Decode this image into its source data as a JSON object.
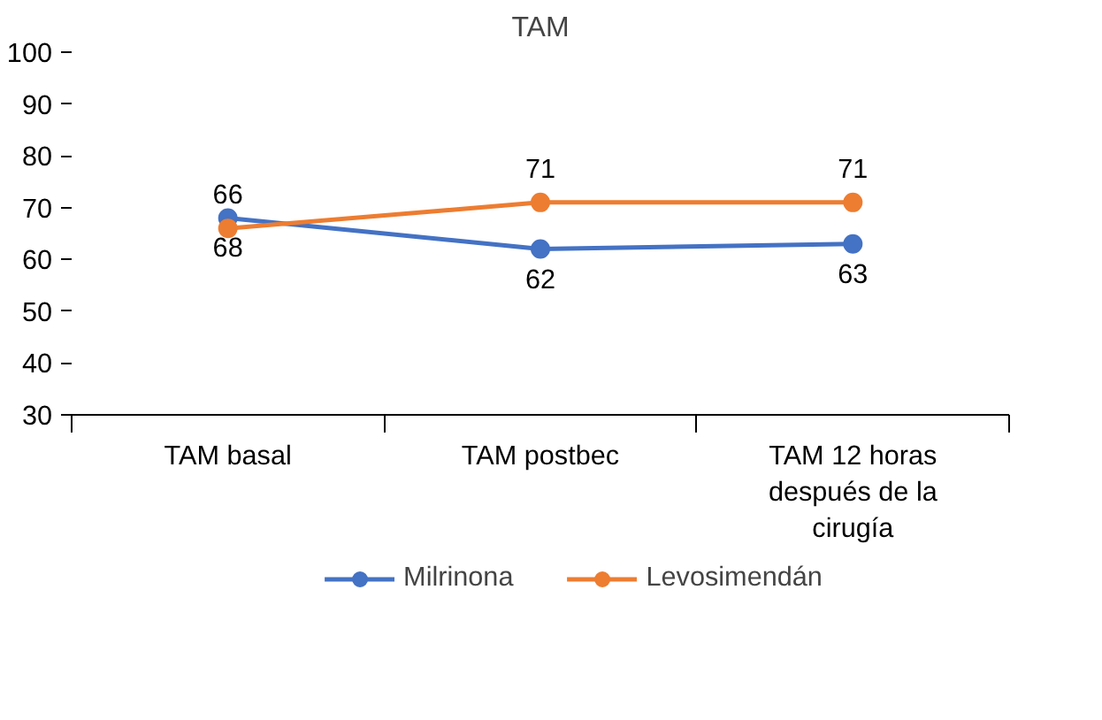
{
  "chart_data": {
    "type": "line",
    "title": "TAM",
    "categories": [
      "TAM basal",
      "TAM postbec",
      "TAM 12 horas después de la cirugía"
    ],
    "series": [
      {
        "name": "Milrinona",
        "color": "#4472c4",
        "values": [
          68,
          62,
          63
        ]
      },
      {
        "name": "Levosimendán",
        "color": "#ed7d31",
        "values": [
          66,
          71,
          71
        ]
      }
    ],
    "ylim": [
      30,
      100
    ],
    "yticks": [
      30,
      40,
      50,
      60,
      70,
      80,
      90,
      100
    ],
    "grid": false,
    "legend": "bottom",
    "marker": "circle",
    "line_style": "solid",
    "data_labels": true
  }
}
